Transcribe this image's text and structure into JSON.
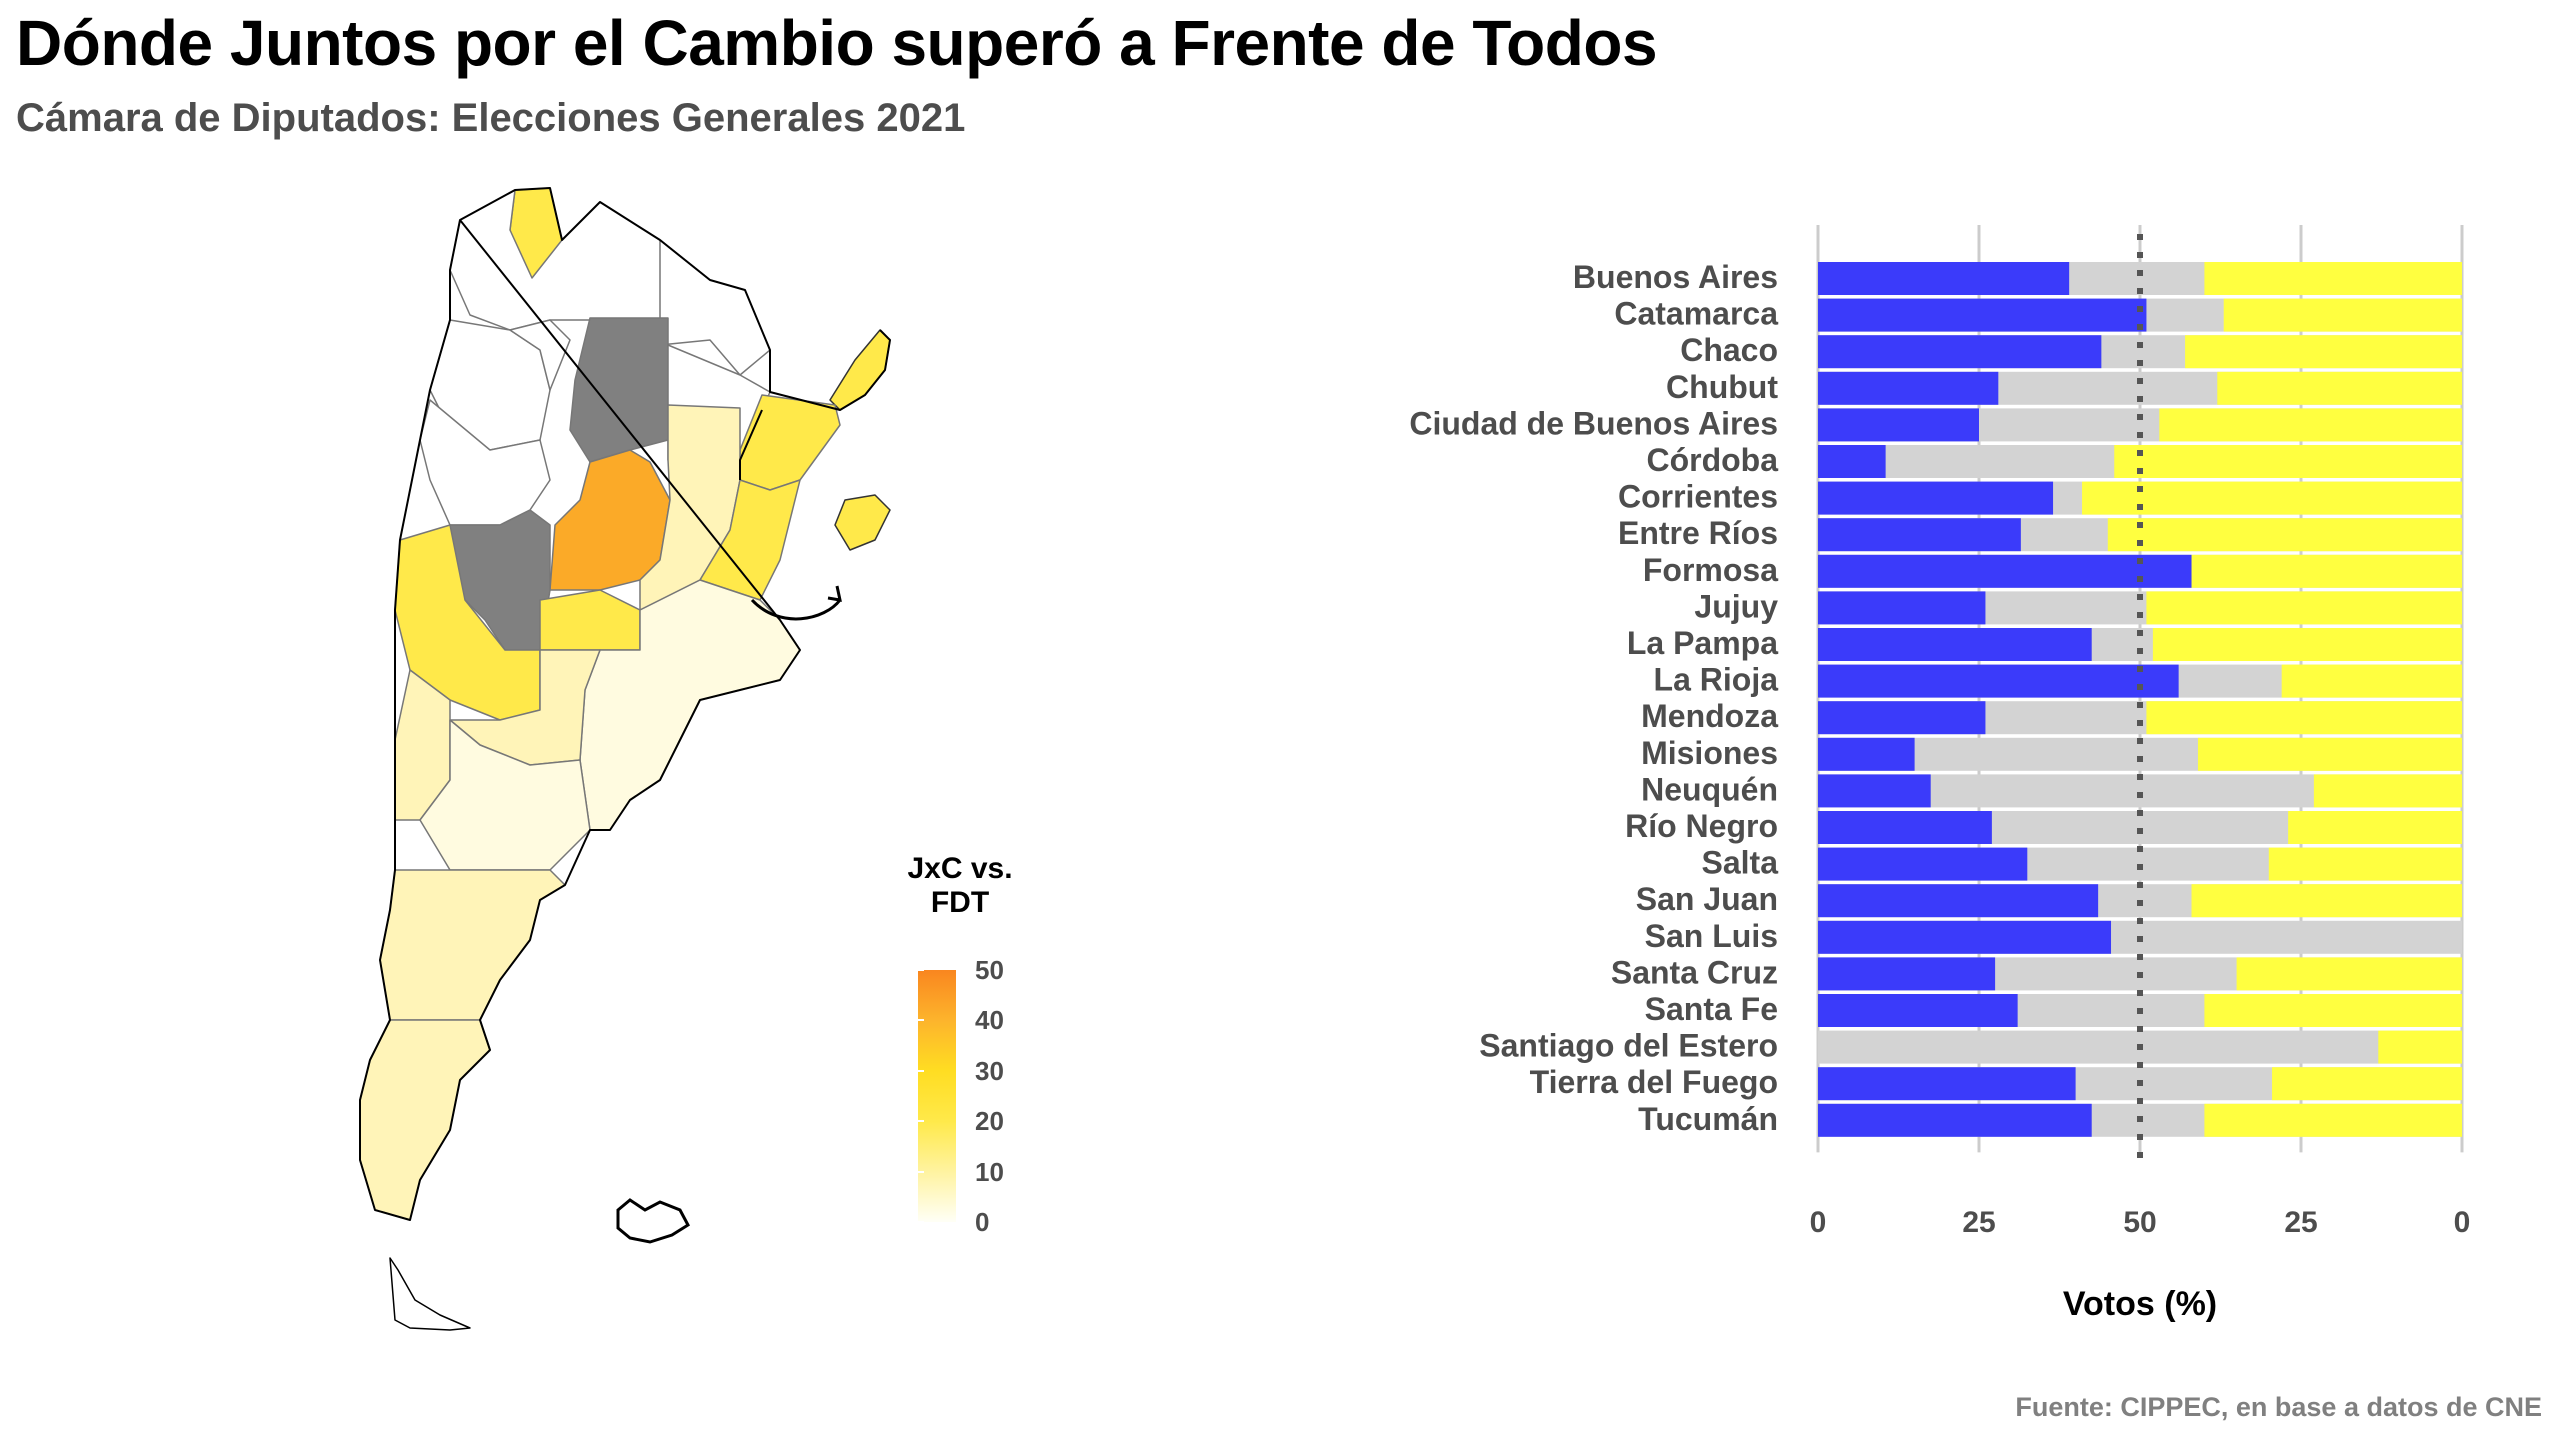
{
  "title": "Dónde Juntos por el Cambio superó a Frente de Todos",
  "subtitle": "Cámara de Diputados: Elecciones Generales 2021",
  "source": "Fuente: CIPPEC, en base a datos de CNE",
  "legend": {
    "title_line1": "JxC vs.",
    "title_line2": "FDT",
    "labels": [
      "0",
      "10",
      "20",
      "30",
      "40",
      "50"
    ],
    "colors": [
      "#fffff6",
      "#fff3a0",
      "#ffe94a",
      "#ffdd22",
      "#fdb42c",
      "#f9861f"
    ]
  },
  "map_colors": {
    "white": "#ffffff",
    "na": "#808080",
    "pale": "#fffbe0",
    "light": "#fff4b8",
    "medium": "#ffe94a",
    "strong": "#fbaa28"
  },
  "chart_data": {
    "type": "bar",
    "orientation": "horizontal",
    "stacked": true,
    "xlabel": "Votos (%)",
    "x_tick_labels": [
      "0",
      "25",
      "50",
      "25",
      "0"
    ],
    "xlim": [
      0,
      100
    ],
    "reference_line": 50,
    "colors": {
      "jxc": "#3b3bfa",
      "others": "#d3d3d3",
      "fdt": "#ffff40"
    },
    "categories": [
      "Buenos Aires",
      "Catamarca",
      "Chaco",
      "Chubut",
      "Ciudad de Buenos Aires",
      "Córdoba",
      "Corrientes",
      "Entre Ríos",
      "Formosa",
      "Jujuy",
      "La Pampa",
      "La Rioja",
      "Mendoza",
      "Misiones",
      "Neuquén",
      "Río Negro",
      "Salta",
      "San Juan",
      "San Luis",
      "Santa Cruz",
      "Santa Fe",
      "Santiago del Estero",
      "Tierra del Fuego",
      "Tucumán"
    ],
    "jxc": [
      39,
      51,
      44,
      28,
      25,
      10.5,
      36.5,
      31.5,
      58,
      26,
      42.5,
      56,
      26,
      15,
      17.5,
      27,
      32.5,
      43.5,
      45.5,
      27.5,
      31,
      0,
      40,
      42.5
    ],
    "fdt": [
      40,
      37,
      43,
      38,
      47,
      54,
      59,
      55,
      42,
      49,
      48,
      28,
      49,
      41,
      23,
      27,
      30,
      42,
      0,
      35,
      40,
      13,
      29.5,
      40
    ]
  }
}
